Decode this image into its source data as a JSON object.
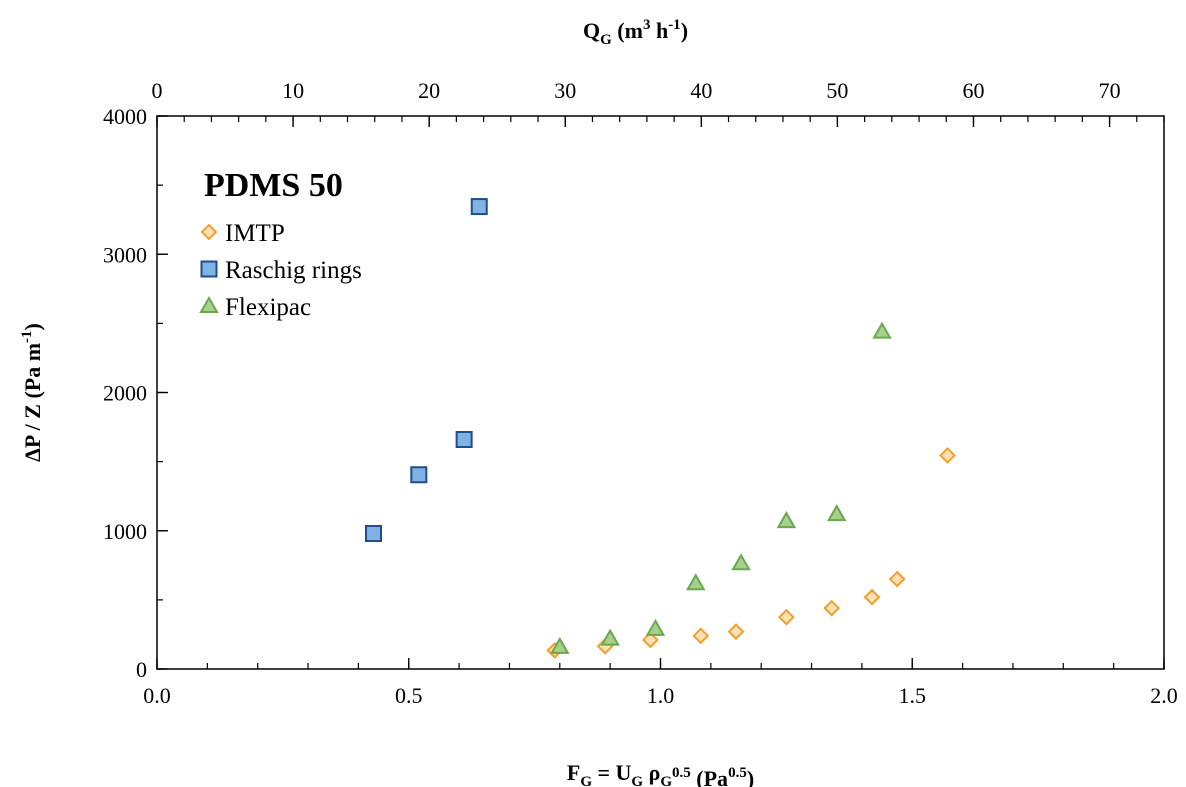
{
  "chart_data": {
    "type": "scatter",
    "title": "",
    "annotation": "PDMS 50",
    "x": {
      "label_parts": [
        "F",
        "G",
        " = U",
        "G",
        " ρ",
        "G",
        "0.5",
        " (Pa",
        "0.5",
        ")"
      ],
      "lim": [
        0,
        2.0
      ],
      "major_ticks": [
        0,
        0.5,
        1.0,
        1.5,
        2.0
      ],
      "tick_labels": [
        "0.0",
        "0.5",
        "1.0",
        "1.5",
        "2.0"
      ],
      "minor_step": 0.1
    },
    "x2": {
      "label_parts": [
        "Q",
        "G",
        " (m",
        "3",
        " h",
        "-1",
        ")"
      ],
      "lim": [
        0,
        74
      ],
      "major_ticks": [
        0,
        10,
        20,
        30,
        40,
        50,
        60,
        70
      ],
      "tick_labels": [
        "0",
        "10",
        "20",
        "30",
        "40",
        "50",
        "60",
        "70"
      ],
      "minor_step": 2
    },
    "y": {
      "label_parts": [
        "ΔP / Z (Pa m",
        "-1",
        ")"
      ],
      "lim": [
        0,
        4000
      ],
      "major_ticks": [
        0,
        1000,
        2000,
        3000,
        4000
      ],
      "tick_labels": [
        "0",
        "1000",
        "2000",
        "3000",
        "4000"
      ],
      "minor_step": 500
    },
    "legend": {
      "placement": "top-left"
    },
    "series": [
      {
        "name": "IMTP",
        "marker": "diamond",
        "fill": "#fde0b3",
        "stroke": "#f0a030",
        "points": [
          [
            0.79,
            135
          ],
          [
            0.89,
            165
          ],
          [
            0.98,
            210
          ],
          [
            1.08,
            240
          ],
          [
            1.15,
            270
          ],
          [
            1.25,
            375
          ],
          [
            1.34,
            440
          ],
          [
            1.42,
            520
          ],
          [
            1.47,
            650
          ],
          [
            1.57,
            1545
          ]
        ]
      },
      {
        "name": "Raschig rings",
        "marker": "square",
        "fill": "#7eb3e3",
        "stroke": "#1f4e8c",
        "points": [
          [
            0.43,
            980
          ],
          [
            0.52,
            1405
          ],
          [
            0.61,
            1660
          ],
          [
            0.64,
            3345
          ]
        ]
      },
      {
        "name": "Flexipac",
        "marker": "triangle",
        "fill": "#a8d08d",
        "stroke": "#6aa84f",
        "points": [
          [
            0.8,
            160
          ],
          [
            0.9,
            220
          ],
          [
            0.99,
            290
          ],
          [
            1.07,
            620
          ],
          [
            1.16,
            765
          ],
          [
            1.25,
            1070
          ],
          [
            1.35,
            1120
          ],
          [
            1.44,
            2440
          ]
        ]
      }
    ]
  }
}
